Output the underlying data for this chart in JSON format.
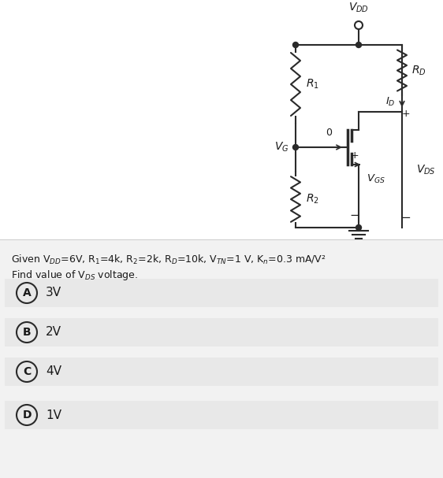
{
  "bg_color": "#f2f2f2",
  "top_bg": "#ffffff",
  "bottom_bg": "#f2f2f2",
  "text_color": "#1a1a1a",
  "line_color": "#2a2a2a",
  "given_line1": "Given V$_{DD}$=6V, R$_1$=4k, R$_2$=2k, R$_D$=10k, V$_{TN}$=1 V, K$_n$=0.3 mA/V²",
  "given_line2": "Find value of V$_{DS}$ voltage.",
  "options": [
    {
      "label": "A",
      "text": "3V"
    },
    {
      "label": "B",
      "text": "2V"
    },
    {
      "label": "C",
      "text": "4V"
    },
    {
      "label": "D",
      "text": "1V"
    }
  ],
  "fig_w": 5.62,
  "fig_h": 6.07,
  "dpi": 100
}
